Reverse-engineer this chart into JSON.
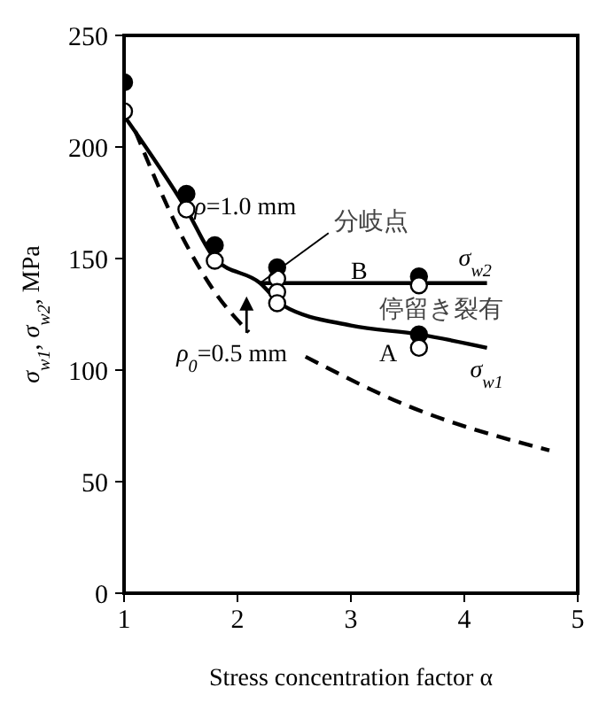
{
  "chart_data": {
    "type": "line",
    "xlabel": "Stress concentration factor α",
    "ylabel": "σ$_{w1}$, σ$_{w2}$, MPa",
    "xlim": [
      1,
      5
    ],
    "xticks": [
      1,
      2,
      3,
      4,
      5
    ],
    "ylim": [
      0,
      250
    ],
    "yticks": [
      0,
      50,
      100,
      150,
      200,
      250
    ],
    "grid": false,
    "legend": false,
    "series": [
      {
        "color": "#000000",
        "line_style": "solid",
        "marker": "none",
        "x": [
          1,
          1.55,
          1.8,
          2.2,
          2.4,
          3,
          3.6,
          4.2
        ],
        "values": [
          214,
          172,
          150,
          139,
          129,
          120,
          116,
          110
        ]
      },
      {
        "color": "#000000",
        "line_style": "solid",
        "marker": "none",
        "x": [
          2.2,
          4.2
        ],
        "values": [
          139,
          139
        ]
      },
      {
        "color": "#000000",
        "line_style": "dashed",
        "marker": "none",
        "x": [
          1.1,
          1.5,
          1.8,
          2.1
        ],
        "values": [
          207,
          161,
          135,
          117
        ]
      },
      {
        "color": "#000000",
        "line_style": "dashed",
        "marker": "none",
        "x": [
          2.6,
          3.5,
          4.75
        ],
        "values": [
          106,
          84,
          64
        ]
      },
      {
        "type": "scatter",
        "color": "#000000",
        "marker": "circle",
        "x": [
          1,
          1.55,
          1.8,
          2.35,
          3.6,
          3.6
        ],
        "values": [
          229,
          179,
          156,
          146,
          142,
          116
        ]
      },
      {
        "type": "scatter",
        "color": "#ffffff",
        "marker": "circle",
        "x": [
          1,
          1.55,
          1.8,
          2.35,
          2.35,
          2.35,
          3.6,
          3.6
        ],
        "values": [
          216,
          172,
          149,
          141,
          135,
          130,
          138,
          110
        ]
      }
    ],
    "annotations": [
      "ρ=1.0 mm",
      "分岐点",
      "B",
      "σ$_{w2}$",
      "停留き裂有",
      "A",
      "σ$_{w1}$",
      "ρ$_{0}$=0.5 mm"
    ]
  }
}
